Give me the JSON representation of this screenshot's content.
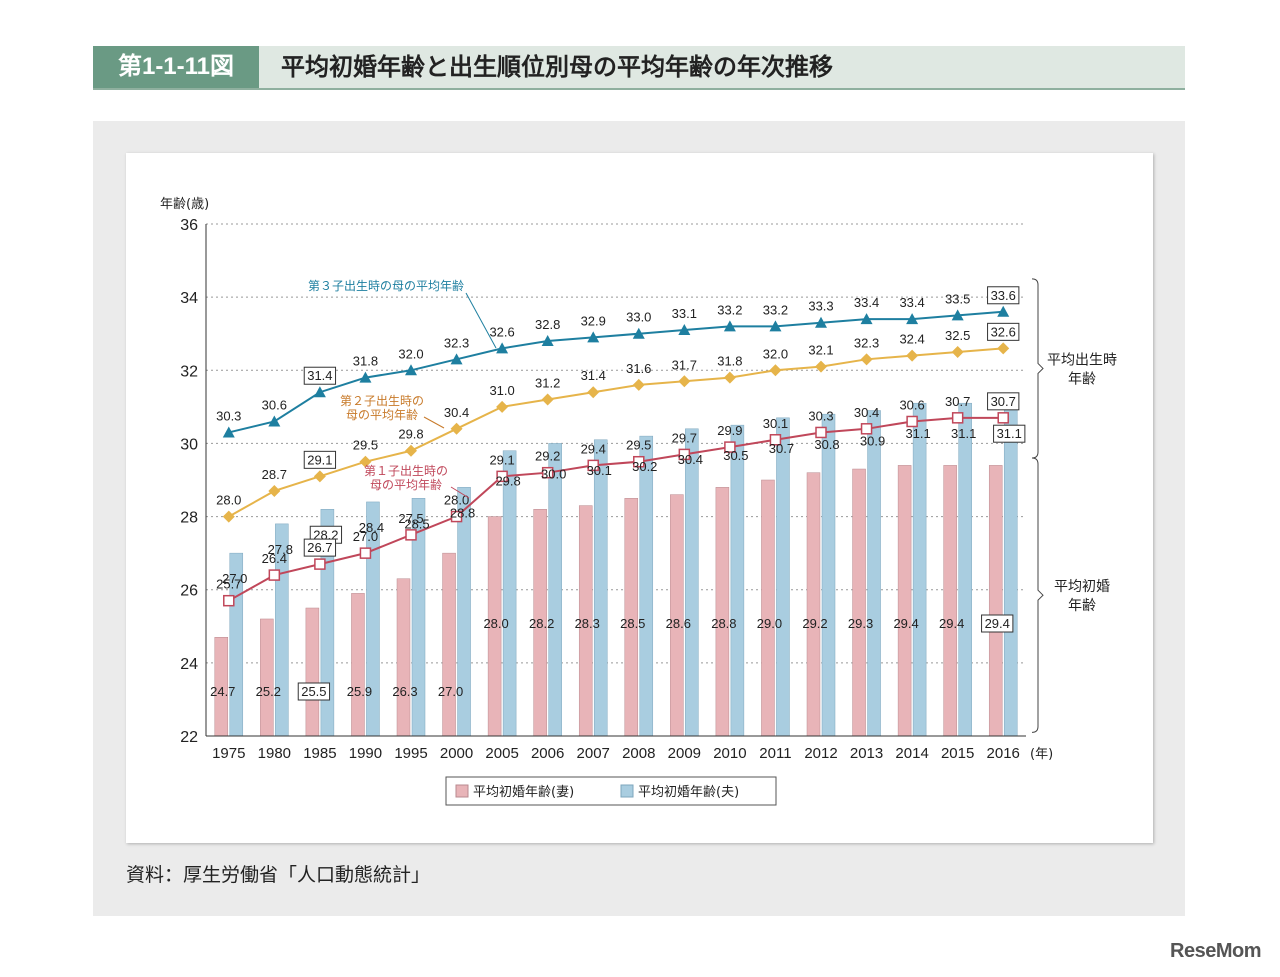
{
  "header": {
    "figure_label": "第1-1-11図",
    "title": "平均初婚年齢と出生順位別母の平均年齢の年次推移"
  },
  "source_note": "資料：厚生労働省「人口動態統計」",
  "watermark": "ReseMom",
  "colors": {
    "wife_bar": "#e8b4b8",
    "husband_bar": "#a9cde0",
    "third_child": "#1e7fa0",
    "second_child": "#e6b44a",
    "first_child": "#c0475a",
    "grid": "#999999"
  },
  "chart_data": {
    "type": "bar+line",
    "ylabel": "年齢(歳)",
    "xunit": "(年)",
    "ylim": [
      22,
      36
    ],
    "yticks": [
      22,
      24,
      26,
      28,
      30,
      32,
      34,
      36
    ],
    "categories": [
      "1975",
      "1980",
      "1985",
      "1990",
      "1995",
      "2000",
      "2005",
      "2006",
      "2007",
      "2008",
      "2009",
      "2010",
      "2011",
      "2012",
      "2013",
      "2014",
      "2015",
      "2016"
    ],
    "bars": [
      {
        "name": "平均初婚年齢(妻)",
        "values": [
          24.7,
          25.2,
          25.5,
          25.9,
          26.3,
          27.0,
          28.0,
          28.2,
          28.3,
          28.5,
          28.6,
          28.8,
          29.0,
          29.2,
          29.3,
          29.4,
          29.4,
          29.4
        ]
      },
      {
        "name": "平均初婚年齢(夫)",
        "values": [
          27.0,
          27.8,
          28.2,
          28.4,
          28.5,
          28.8,
          29.8,
          30.0,
          30.1,
          30.2,
          30.4,
          30.5,
          30.7,
          30.8,
          30.9,
          31.1,
          31.1,
          31.1
        ]
      }
    ],
    "lines": [
      {
        "name": "第３子出生時の母の平均年齢",
        "values": [
          30.3,
          30.6,
          31.4,
          31.8,
          32.0,
          32.3,
          32.6,
          32.8,
          32.9,
          33.0,
          33.1,
          33.2,
          33.2,
          33.3,
          33.4,
          33.4,
          33.5,
          33.6
        ]
      },
      {
        "name": "第２子出生時の母の平均年齢",
        "label_lines": [
          "第２子出生時の",
          "母の平均年齢"
        ],
        "values": [
          28.0,
          28.7,
          29.1,
          29.5,
          29.8,
          30.4,
          31.0,
          31.2,
          31.4,
          31.6,
          31.7,
          31.8,
          32.0,
          32.1,
          32.3,
          32.4,
          32.5,
          32.6
        ]
      },
      {
        "name": "第１子出生時の母の平均年齢",
        "label_lines": [
          "第１子出生時の",
          "母の平均年齢"
        ],
        "values": [
          25.7,
          26.4,
          26.7,
          27.0,
          27.5,
          28.0,
          29.1,
          29.2,
          29.4,
          29.5,
          29.7,
          29.9,
          30.1,
          30.3,
          30.4,
          30.6,
          30.7,
          30.7
        ]
      }
    ],
    "right_brackets": [
      {
        "label_lines": [
          "平均出生時",
          "年齢"
        ]
      },
      {
        "label_lines": [
          "平均初婚",
          "年齢"
        ]
      }
    ],
    "legend": [
      "平均初婚年齢(妻)",
      "平均初婚年齢(夫)"
    ]
  }
}
